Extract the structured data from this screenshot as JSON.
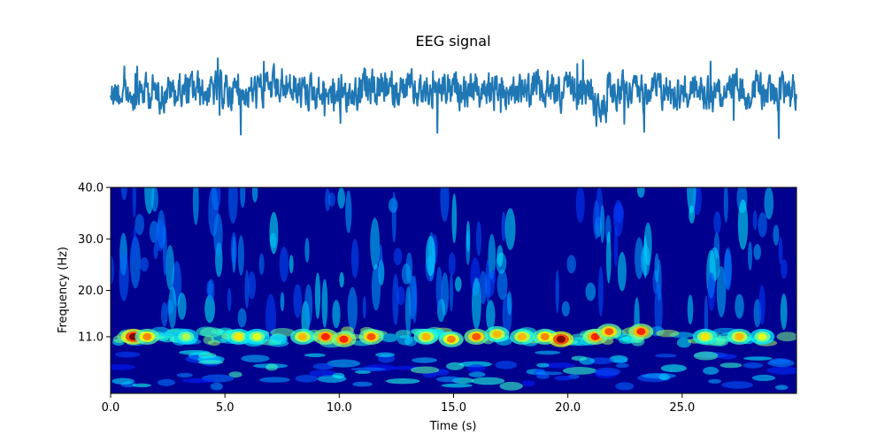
{
  "chart_data": [
    {
      "type": "line",
      "title": "EEG signal",
      "axes_visible": false,
      "duration_s": 30,
      "color": "#1f77b4",
      "description_of_signal": "",
      "series": [
        {
          "values": []
        }
      ]
    },
    {
      "type": "heatmap",
      "title": "",
      "xlabel": "Time (s)",
      "ylabel": "Frequency (Hz)",
      "xlim": [
        0,
        30
      ],
      "ylim": [
        0,
        40
      ],
      "x_ticks": [
        "0.0",
        "5.0",
        "10.0",
        "15.0",
        "20.0",
        "25.0"
      ],
      "y_ticks": [
        "11.0",
        "20.0",
        "30.0",
        "40.0"
      ],
      "colormap": "jet",
      "dominant_band_hz": 11,
      "hotspots": [
        {
          "t": 1.0,
          "f": 11,
          "level": 1.0
        },
        {
          "t": 1.6,
          "f": 11,
          "level": 0.75
        },
        {
          "t": 3.3,
          "f": 11,
          "level": 0.55
        },
        {
          "t": 5.6,
          "f": 11,
          "level": 0.65
        },
        {
          "t": 6.4,
          "f": 11,
          "level": 0.6
        },
        {
          "t": 8.4,
          "f": 11,
          "level": 0.7
        },
        {
          "t": 9.4,
          "f": 11,
          "level": 0.85
        },
        {
          "t": 10.2,
          "f": 10.5,
          "level": 0.85
        },
        {
          "t": 11.4,
          "f": 11,
          "level": 0.8
        },
        {
          "t": 13.8,
          "f": 11,
          "level": 0.7
        },
        {
          "t": 14.9,
          "f": 10.5,
          "level": 0.75
        },
        {
          "t": 16.0,
          "f": 11,
          "level": 0.8
        },
        {
          "t": 16.9,
          "f": 11.5,
          "level": 0.7
        },
        {
          "t": 18.0,
          "f": 11,
          "level": 0.7
        },
        {
          "t": 19.0,
          "f": 11,
          "level": 0.75
        },
        {
          "t": 19.7,
          "f": 10.5,
          "level": 1.0
        },
        {
          "t": 21.2,
          "f": 11,
          "level": 0.85
        },
        {
          "t": 21.8,
          "f": 12,
          "level": 0.8
        },
        {
          "t": 23.2,
          "f": 12,
          "level": 0.85
        },
        {
          "t": 26.0,
          "f": 11,
          "level": 0.65
        },
        {
          "t": 27.5,
          "f": 11,
          "level": 0.7
        },
        {
          "t": 28.5,
          "f": 11,
          "level": 0.6
        }
      ]
    }
  ]
}
